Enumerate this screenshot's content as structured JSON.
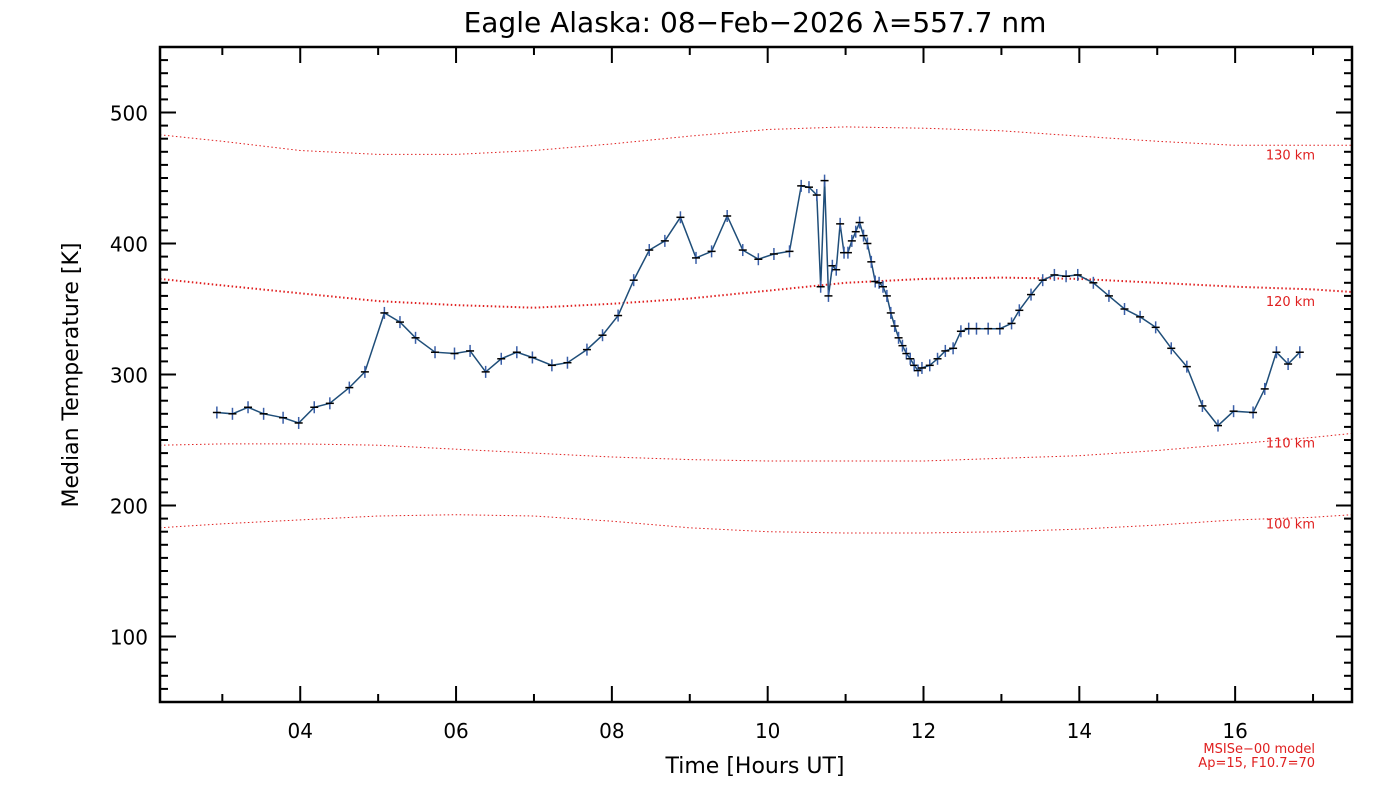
{
  "chart_data": {
    "type": "line",
    "title": "Eagle Alaska: 08−Feb−2026 λ=557.7 nm",
    "xlabel": "Time [Hours UT]",
    "ylabel": "Median Temperature [K]",
    "xlim": [
      2.2,
      17.5
    ],
    "ylim": [
      50,
      550
    ],
    "x_ticks": [
      4,
      6,
      8,
      10,
      12,
      14,
      16
    ],
    "x_tick_labels": [
      "04",
      "06",
      "08",
      "10",
      "12",
      "14",
      "16"
    ],
    "y_ticks": [
      100,
      200,
      300,
      400,
      500
    ],
    "y_tick_labels": [
      "100",
      "200",
      "300",
      "400",
      "500"
    ],
    "series": [
      {
        "name": "Median Temperature",
        "color": "#1f4e79",
        "marker": "plus",
        "x": [
          2.93,
          3.13,
          3.33,
          3.53,
          3.78,
          3.98,
          4.18,
          4.38,
          4.63,
          4.83,
          5.08,
          5.28,
          5.48,
          5.73,
          5.98,
          6.18,
          6.38,
          6.58,
          6.78,
          6.98,
          7.23,
          7.43,
          7.68,
          7.88,
          8.08,
          8.28,
          8.48,
          8.68,
          8.88,
          9.08,
          9.28,
          9.48,
          9.68,
          9.88,
          10.08,
          10.28,
          10.43,
          10.53,
          10.63,
          10.68,
          10.73,
          10.78,
          10.83,
          10.88,
          10.93,
          10.98,
          11.03,
          11.08,
          11.13,
          11.18,
          11.23,
          11.28,
          11.33,
          11.38,
          11.43,
          11.48,
          11.53,
          11.58,
          11.63,
          11.68,
          11.73,
          11.78,
          11.83,
          11.88,
          11.93,
          11.98,
          12.08,
          12.18,
          12.28,
          12.38,
          12.48,
          12.58,
          12.68,
          12.83,
          12.98,
          13.13,
          13.23,
          13.38,
          13.53,
          13.68,
          13.83,
          13.98,
          14.18,
          14.38,
          14.58,
          14.78,
          14.98,
          15.18,
          15.38,
          15.58,
          15.78,
          15.98,
          16.23,
          16.38,
          16.53,
          16.68,
          16.83
        ],
        "y": [
          271,
          270,
          275,
          270,
          267,
          263,
          275,
          278,
          290,
          302,
          347,
          340,
          328,
          317,
          316,
          318,
          302,
          312,
          317,
          313,
          307,
          309,
          319,
          330,
          345,
          372,
          395,
          402,
          420,
          389,
          394,
          421,
          395,
          388,
          392,
          394,
          444,
          443,
          437,
          367,
          448,
          360,
          383,
          380,
          415,
          393,
          393,
          402,
          409,
          416,
          406,
          400,
          386,
          371,
          370,
          367,
          360,
          347,
          337,
          328,
          322,
          316,
          312,
          307,
          303,
          305,
          307,
          312,
          318,
          320,
          333,
          335,
          335,
          335,
          335,
          339,
          349,
          361,
          372,
          376,
          375,
          376,
          370,
          360,
          350,
          344,
          336,
          320,
          306,
          276,
          261,
          272,
          271,
          289,
          317,
          308,
          317
        ]
      }
    ],
    "model_curves": [
      {
        "label": "130 km",
        "color": "#e02020",
        "style": "dotted",
        "width": 1,
        "x": [
          2.2,
          3,
          4,
          5,
          6,
          7,
          8,
          9,
          10,
          11,
          12,
          13,
          14,
          15,
          16,
          17,
          17.5
        ],
        "y": [
          483,
          478,
          471,
          468,
          468,
          471,
          476,
          482,
          487,
          489,
          488,
          486,
          482,
          478,
          475,
          475,
          475
        ]
      },
      {
        "label": "120 km",
        "color": "#e02020",
        "style": "dotted",
        "width": 2,
        "x": [
          2.2,
          3,
          4,
          5,
          6,
          7,
          8,
          9,
          10,
          11,
          12,
          13,
          14,
          15,
          16,
          17,
          17.5
        ],
        "y": [
          373,
          368,
          362,
          356,
          353,
          351,
          354,
          358,
          364,
          370,
          373,
          374,
          373,
          370,
          367,
          365,
          363
        ]
      },
      {
        "label": "110 km",
        "color": "#e02020",
        "style": "dotted",
        "width": 1,
        "x": [
          2.2,
          3,
          4,
          5,
          6,
          7,
          8,
          9,
          10,
          11,
          12,
          13,
          14,
          15,
          16,
          17,
          17.5
        ],
        "y": [
          246,
          247,
          247,
          246,
          243,
          240,
          237,
          235,
          234,
          234,
          234,
          236,
          238,
          242,
          247,
          252,
          255
        ]
      },
      {
        "label": "100 km",
        "color": "#e02020",
        "style": "dotted",
        "width": 1,
        "x": [
          2.2,
          3,
          4,
          5,
          6,
          7,
          8,
          9,
          10,
          11,
          12,
          13,
          14,
          15,
          16,
          17,
          17.5
        ],
        "y": [
          183,
          186,
          189,
          192,
          193,
          192,
          188,
          183,
          180,
          179,
          179,
          180,
          182,
          185,
          189,
          191,
          193
        ]
      }
    ],
    "model_note": [
      "MSISe−00 model",
      "Ap=15, F10.7=70"
    ]
  }
}
